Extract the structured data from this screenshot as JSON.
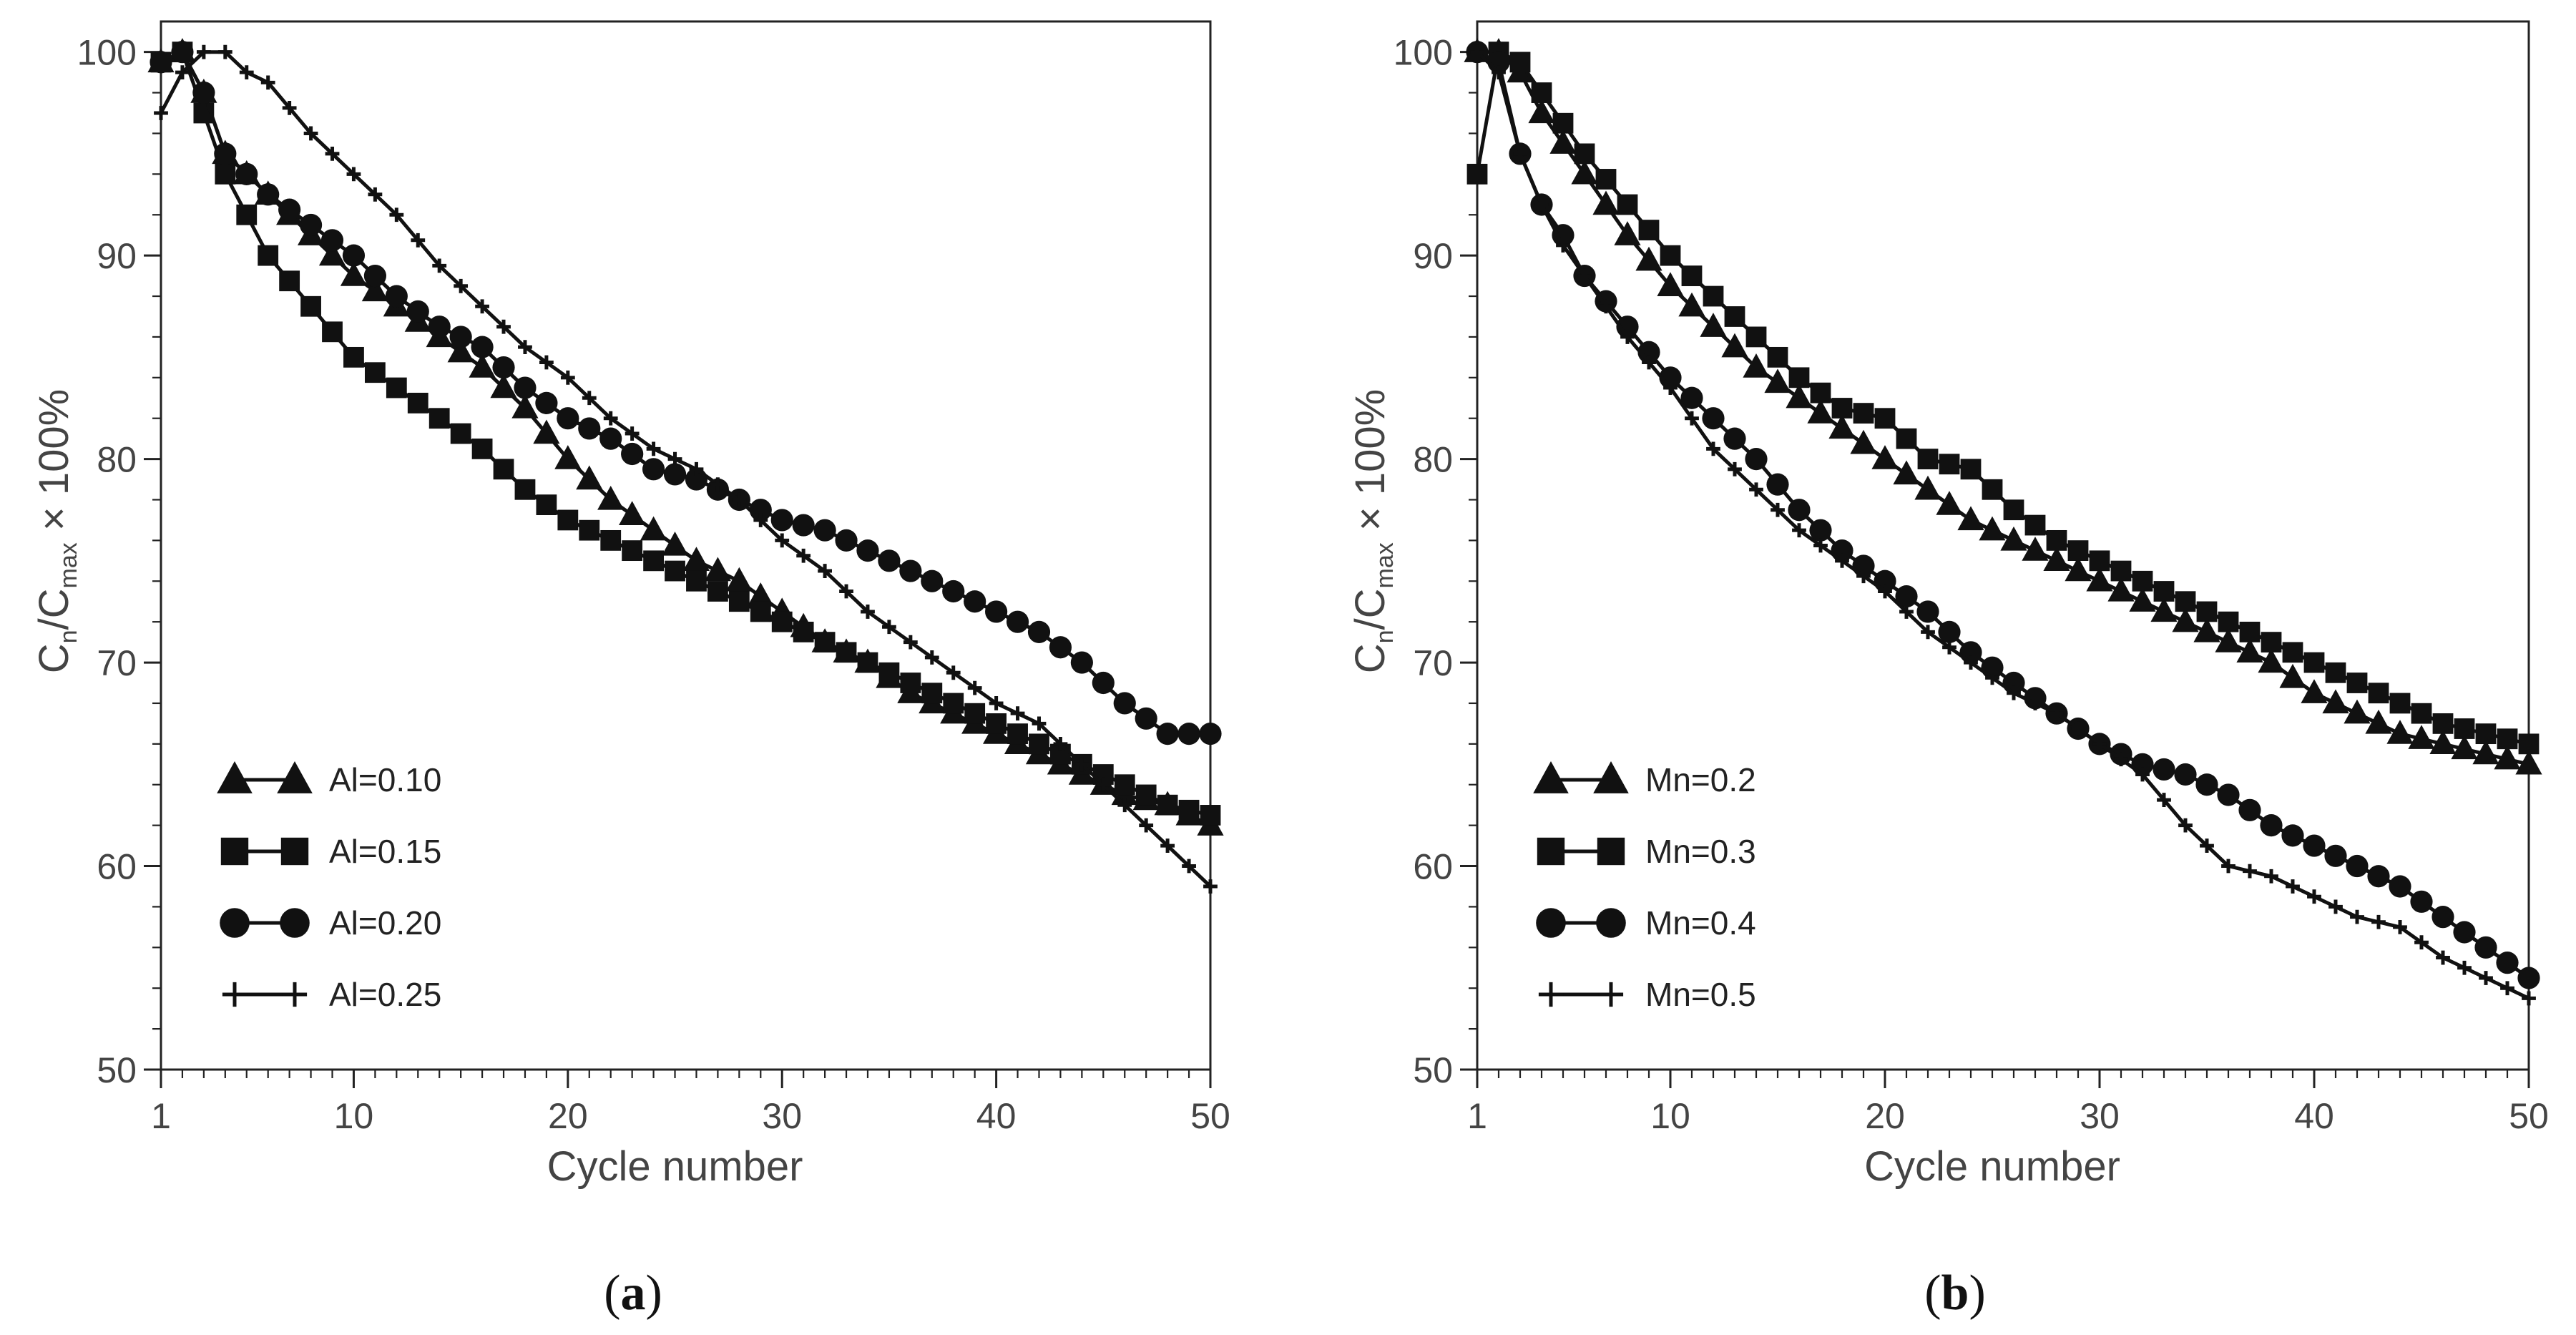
{
  "chart_data": [
    {
      "type": "line",
      "panel_label": "a",
      "xlabel": "Cycle number",
      "ylabel": {
        "main": "C",
        "sub1": "n",
        "mid": "/C",
        "sub2": "max",
        "tail": " × 100%"
      },
      "xlim": [
        1,
        50
      ],
      "ylim": [
        50,
        101.5
      ],
      "xticks": [
        1,
        10,
        20,
        30,
        40,
        50
      ],
      "xtick_labels": [
        "1",
        "10",
        "20",
        "30",
        "40",
        "50"
      ],
      "yticks": [
        50,
        60,
        70,
        80,
        90,
        100
      ],
      "ytick_labels": [
        "50",
        "60",
        "70",
        "80",
        "90",
        "100"
      ],
      "legend_position": "bottom-left",
      "series": [
        {
          "name": "Al=0.10",
          "marker": "triangle",
          "x": [
            1,
            2,
            3,
            4,
            5,
            6,
            8,
            10,
            12,
            14,
            16,
            18,
            20,
            22,
            24,
            26,
            28,
            30,
            32,
            34,
            36,
            38,
            40,
            42,
            44,
            46,
            48,
            50
          ],
          "y": [
            99.5,
            100,
            98,
            95,
            94,
            93,
            91,
            89,
            87.5,
            86,
            84.5,
            82.5,
            80,
            78,
            76.5,
            75,
            74,
            72.5,
            71,
            70,
            68.5,
            67.5,
            66.5,
            65.5,
            64.5,
            63.5,
            63,
            62
          ]
        },
        {
          "name": "Al=0.15",
          "marker": "square",
          "x": [
            1,
            2,
            3,
            4,
            5,
            6,
            8,
            10,
            12,
            14,
            16,
            18,
            20,
            22,
            24,
            26,
            28,
            30,
            32,
            34,
            36,
            38,
            40,
            42,
            44,
            46,
            48,
            50
          ],
          "y": [
            99.5,
            100,
            97,
            94,
            92,
            90,
            87.5,
            85,
            83.5,
            82,
            80.5,
            78.5,
            77,
            76,
            75,
            74,
            73,
            72,
            71,
            70,
            69,
            68,
            67,
            66,
            65,
            64,
            63,
            62.5
          ]
        },
        {
          "name": "Al=0.20",
          "marker": "circle",
          "x": [
            1,
            2,
            3,
            4,
            5,
            6,
            8,
            10,
            12,
            14,
            16,
            18,
            20,
            22,
            24,
            26,
            28,
            30,
            32,
            34,
            36,
            38,
            40,
            42,
            44,
            46,
            48,
            50
          ],
          "y": [
            99.5,
            100,
            98,
            95,
            94,
            93,
            91.5,
            90,
            88,
            86.5,
            85.5,
            83.5,
            82,
            81,
            79.5,
            79,
            78,
            77,
            76.5,
            75.5,
            74.5,
            73.5,
            72.5,
            71.5,
            70,
            68,
            66.5,
            66.5
          ]
        },
        {
          "name": "Al=0.25",
          "marker": "plus",
          "x": [
            1,
            2,
            3,
            4,
            5,
            6,
            8,
            10,
            12,
            14,
            16,
            18,
            20,
            22,
            24,
            26,
            28,
            30,
            32,
            34,
            36,
            38,
            40,
            42,
            44,
            46,
            48,
            50
          ],
          "y": [
            97,
            99,
            100,
            100,
            99,
            98.5,
            96,
            94,
            92,
            89.5,
            87.5,
            85.5,
            84,
            82,
            80.5,
            79.5,
            78,
            76,
            74.5,
            72.5,
            71,
            69.5,
            68,
            67,
            65,
            63,
            61,
            59
          ]
        }
      ]
    },
    {
      "type": "line",
      "panel_label": "b",
      "xlabel": "Cycle number",
      "ylabel": {
        "main": "C",
        "sub1": "n",
        "mid": "/C",
        "sub2": "max",
        "tail": " × 100%"
      },
      "xlim": [
        1,
        50
      ],
      "ylim": [
        50,
        101.5
      ],
      "xticks": [
        1,
        10,
        20,
        30,
        40,
        50
      ],
      "xtick_labels": [
        "1",
        "10",
        "20",
        "30",
        "40",
        "50"
      ],
      "yticks": [
        50,
        60,
        70,
        80,
        90,
        100
      ],
      "ytick_labels": [
        "50",
        "60",
        "70",
        "80",
        "90",
        "100"
      ],
      "legend_position": "bottom-left",
      "series": [
        {
          "name": "Mn=0.2",
          "marker": "triangle",
          "x": [
            1,
            2,
            3,
            4,
            5,
            6,
            8,
            10,
            12,
            14,
            16,
            18,
            20,
            22,
            24,
            26,
            28,
            30,
            32,
            34,
            36,
            38,
            40,
            42,
            44,
            46,
            48,
            50
          ],
          "y": [
            100,
            100,
            99,
            97,
            95.5,
            94,
            91,
            88.5,
            86.5,
            84.5,
            83,
            81.5,
            80,
            78.5,
            77,
            76,
            75,
            74,
            73,
            72,
            71,
            70,
            68.5,
            67.5,
            66.5,
            66,
            65.5,
            65
          ]
        },
        {
          "name": "Mn=0.3",
          "marker": "square",
          "x": [
            1,
            2,
            3,
            4,
            5,
            6,
            8,
            10,
            12,
            14,
            16,
            18,
            20,
            22,
            24,
            26,
            28,
            30,
            32,
            34,
            36,
            38,
            40,
            42,
            44,
            46,
            48,
            50
          ],
          "y": [
            94,
            100,
            99.5,
            98,
            96.5,
            95,
            92.5,
            90,
            88,
            86,
            84,
            82.5,
            82,
            80,
            79.5,
            77.5,
            76,
            75,
            74,
            73,
            72,
            71,
            70,
            69,
            68,
            67,
            66.5,
            66
          ]
        },
        {
          "name": "Mn=0.4",
          "marker": "circle",
          "x": [
            1,
            2,
            3,
            4,
            5,
            6,
            8,
            10,
            12,
            14,
            16,
            18,
            20,
            22,
            24,
            26,
            28,
            30,
            32,
            34,
            36,
            38,
            40,
            42,
            44,
            46,
            48,
            50
          ],
          "y": [
            100,
            99.5,
            95,
            92.5,
            91,
            89,
            86.5,
            84,
            82,
            80,
            77.5,
            75.5,
            74,
            72.5,
            70.5,
            69,
            67.5,
            66,
            65,
            64.5,
            63.5,
            62,
            61,
            60,
            59,
            57.5,
            56,
            54.5
          ]
        },
        {
          "name": "Mn=0.5",
          "marker": "plus",
          "x": [
            1,
            2,
            3,
            4,
            5,
            6,
            8,
            10,
            12,
            14,
            16,
            18,
            20,
            22,
            24,
            26,
            28,
            30,
            32,
            34,
            36,
            38,
            40,
            42,
            44,
            46,
            48,
            50
          ],
          "y": [
            100,
            99,
            95,
            92.5,
            90.5,
            89,
            86,
            83.5,
            80.5,
            78.5,
            76.5,
            75,
            73.5,
            71.5,
            70,
            68.5,
            67.5,
            66,
            64.5,
            62,
            60,
            59.5,
            58.5,
            57.5,
            57,
            55.5,
            54.5,
            53.5
          ]
        }
      ]
    }
  ]
}
